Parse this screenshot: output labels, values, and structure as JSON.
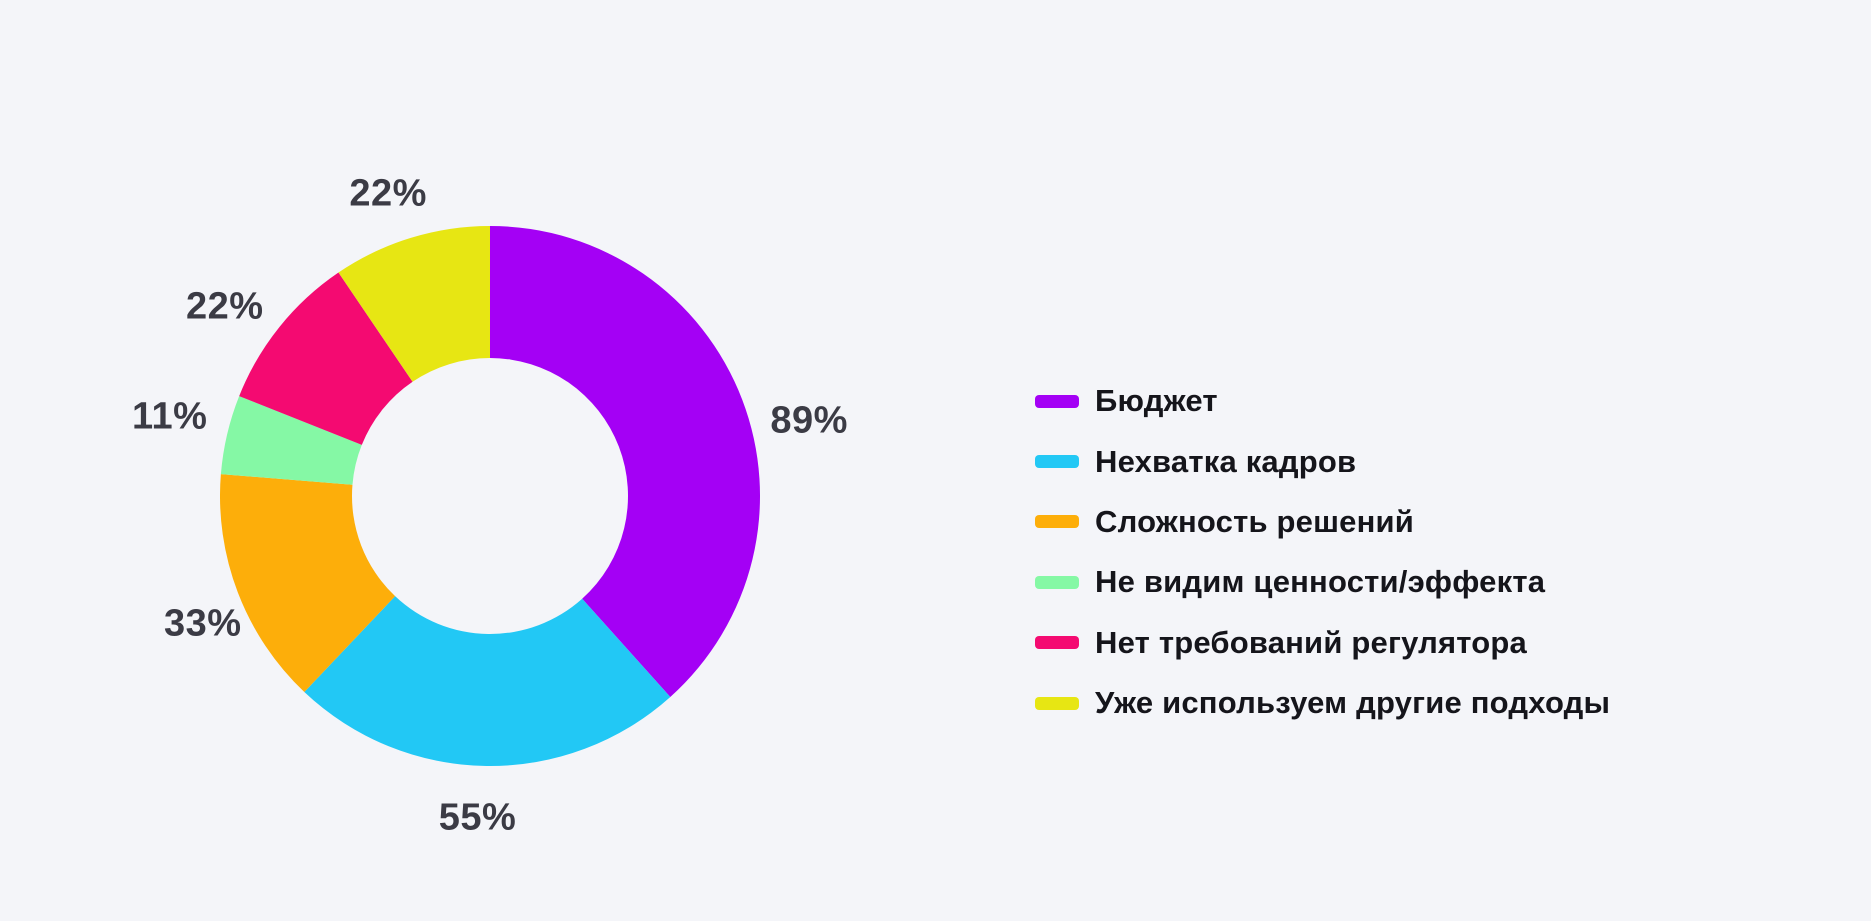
{
  "page": {
    "background": "#F4F5F9"
  },
  "chart_data": {
    "type": "pie",
    "subtype": "donut",
    "title": "",
    "categories": [
      "Бюджет",
      "Нехватка кадров",
      "Сложность решений",
      "Не видим ценности/эффекта",
      "Нет требований регулятора",
      "Уже используем другие подходы"
    ],
    "values": [
      89,
      55,
      33,
      11,
      22,
      22
    ],
    "value_labels": [
      "89%",
      "55%",
      "33%",
      "11%",
      "22%",
      "22%"
    ],
    "colors": [
      "#A400F5",
      "#22C8F5",
      "#FDAE0A",
      "#85F8A5",
      "#F40A71",
      "#E7E613"
    ],
    "start_angle_deg": 0,
    "direction": "clockwise",
    "donut_hole_ratio": 0.51,
    "legend_position": "right",
    "label_color": "#3B3B45",
    "legend_text_color": "#15151B",
    "hole_color": "#F4F5F9"
  }
}
